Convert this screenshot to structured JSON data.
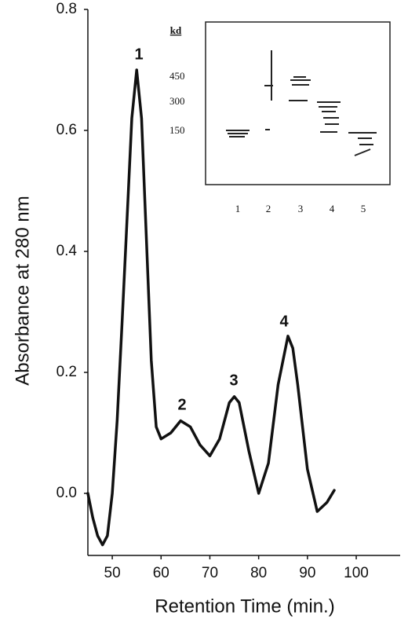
{
  "chart_data": {
    "type": "line",
    "x_label": "Retention Time (min.)",
    "y_label": "Absorbance at 280 nm",
    "x": [
      45,
      46,
      47,
      48,
      49,
      50,
      51,
      52,
      53,
      54,
      55,
      56,
      57,
      58,
      59,
      60,
      62,
      64,
      66,
      68,
      70,
      72,
      74,
      75,
      76,
      78,
      80,
      82,
      84,
      86,
      87,
      88,
      90,
      92,
      94,
      95.5
    ],
    "values": [
      0.0,
      -0.04,
      -0.07,
      -0.085,
      -0.07,
      0.0,
      0.12,
      0.28,
      0.45,
      0.62,
      0.7,
      0.62,
      0.42,
      0.22,
      0.11,
      0.09,
      0.1,
      0.12,
      0.11,
      0.08,
      0.062,
      0.09,
      0.15,
      0.16,
      0.15,
      0.07,
      0.0,
      0.05,
      0.18,
      0.26,
      0.24,
      0.18,
      0.04,
      -0.03,
      -0.015,
      0.005
    ],
    "color": "#111111",
    "xlim": [
      45,
      109
    ],
    "ylim": [
      -0.1,
      0.8
    ],
    "xticks": [
      50,
      60,
      70,
      80,
      90,
      100
    ],
    "yticks": [
      {
        "value": 0,
        "label": "0.0"
      },
      0.2,
      0.4,
      0.6,
      0.8
    ],
    "annotations": [
      "1",
      "2",
      "3",
      "4"
    ],
    "inset": {
      "unit": "kd",
      "markers": [
        "450",
        "300",
        "150"
      ],
      "lanes": [
        "1",
        "2",
        "3",
        "4",
        "5"
      ]
    }
  }
}
